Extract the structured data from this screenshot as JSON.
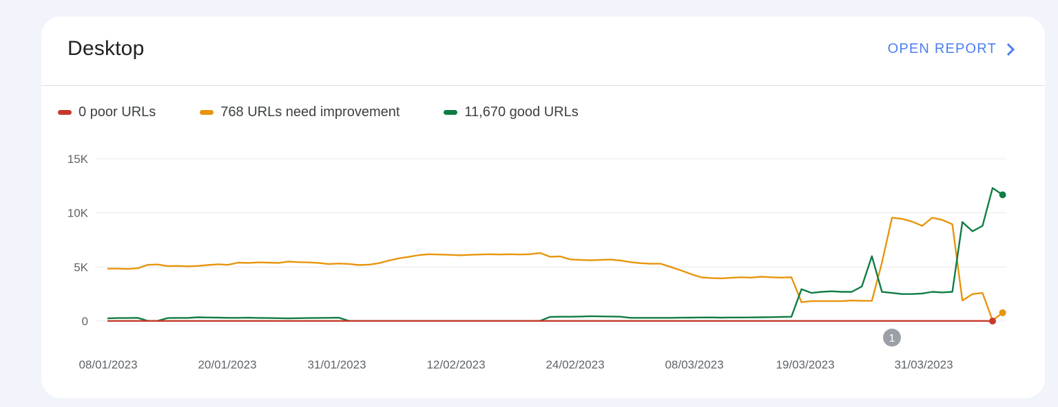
{
  "card": {
    "title": "Desktop",
    "open_report_label": "OPEN REPORT"
  },
  "colors": {
    "poor": "#c5392b",
    "needs_improvement": "#e8940c",
    "good": "#0e7c43",
    "link": "#4a7ff0",
    "grid": "#e8eaed",
    "axis_text": "#5f6368",
    "annotation": "#9aa0a6"
  },
  "legend": [
    {
      "key": "poor",
      "label": "0 poor URLs"
    },
    {
      "key": "needs_improvement",
      "label": "768 URLs need improvement"
    },
    {
      "key": "good",
      "label": "11,670 good URLs"
    }
  ],
  "chart_data": {
    "type": "line",
    "y_ticks": [
      {
        "value": 0,
        "label": "0"
      },
      {
        "value": 5000,
        "label": "5K"
      },
      {
        "value": 10000,
        "label": "10K"
      },
      {
        "value": 15000,
        "label": "15K"
      }
    ],
    "ylim": [
      0,
      15000
    ],
    "x_ticks": [
      "08/01/2023",
      "20/01/2023",
      "31/01/2023",
      "12/02/2023",
      "24/02/2023",
      "08/03/2023",
      "19/03/2023",
      "31/03/2023"
    ],
    "annotations": [
      {
        "label": "1",
        "date_index": 78
      }
    ],
    "series": [
      {
        "key": "poor",
        "name": "0 poor URLs",
        "values": [
          10,
          10,
          10,
          10,
          10,
          10,
          10,
          10,
          10,
          10,
          10,
          10,
          10,
          10,
          10,
          10,
          10,
          10,
          10,
          10,
          10,
          10,
          10,
          10,
          10,
          10,
          10,
          10,
          10,
          10,
          10,
          10,
          10,
          10,
          10,
          10,
          10,
          10,
          10,
          10,
          10,
          10,
          10,
          10,
          10,
          10,
          10,
          10,
          10,
          10,
          10,
          10,
          10,
          10,
          10,
          10,
          10,
          10,
          10,
          10,
          10,
          10,
          10,
          10,
          10,
          10,
          10,
          10,
          10,
          10,
          10,
          10,
          10,
          10,
          10,
          10,
          10,
          10,
          10,
          10,
          10,
          10,
          10,
          10,
          10,
          10,
          10,
          10,
          0
        ]
      },
      {
        "key": "needs_improvement",
        "name": "768 URLs need improvement",
        "values": [
          4850,
          4850,
          4820,
          4880,
          5200,
          5230,
          5080,
          5100,
          5060,
          5100,
          5180,
          5250,
          5200,
          5400,
          5380,
          5420,
          5400,
          5380,
          5500,
          5450,
          5420,
          5380,
          5270,
          5320,
          5280,
          5180,
          5220,
          5350,
          5600,
          5800,
          5950,
          6100,
          6180,
          6150,
          6120,
          6080,
          6120,
          6150,
          6180,
          6150,
          6180,
          6150,
          6180,
          6300,
          5950,
          5980,
          5700,
          5650,
          5620,
          5650,
          5680,
          5600,
          5450,
          5350,
          5300,
          5300,
          5000,
          4700,
          4350,
          4050,
          3980,
          3950,
          4000,
          4050,
          4020,
          4100,
          4050,
          4020,
          4050,
          1750,
          1850,
          1850,
          1850,
          1850,
          1900,
          1870,
          1870,
          5400,
          9550,
          9450,
          9200,
          8800,
          9550,
          9350,
          8950,
          1900,
          2500,
          2600,
          50,
          768
        ]
      },
      {
        "key": "good",
        "name": "11,670 good URLs",
        "values": [
          250,
          280,
          280,
          300,
          20,
          20,
          280,
          290,
          290,
          350,
          330,
          320,
          300,
          300,
          310,
          290,
          280,
          270,
          250,
          270,
          280,
          290,
          300,
          310,
          20,
          20,
          20,
          20,
          20,
          20,
          20,
          20,
          20,
          20,
          20,
          20,
          20,
          20,
          20,
          20,
          20,
          20,
          20,
          20,
          380,
          400,
          400,
          420,
          450,
          430,
          420,
          400,
          300,
          300,
          300,
          300,
          300,
          310,
          320,
          330,
          340,
          320,
          330,
          330,
          340,
          350,
          360,
          380,
          400,
          2950,
          2600,
          2700,
          2750,
          2700,
          2700,
          3200,
          6000,
          2700,
          2600,
          2500,
          2500,
          2550,
          2700,
          2650,
          2700,
          9150,
          8300,
          8800,
          12300,
          11670
        ]
      }
    ]
  }
}
